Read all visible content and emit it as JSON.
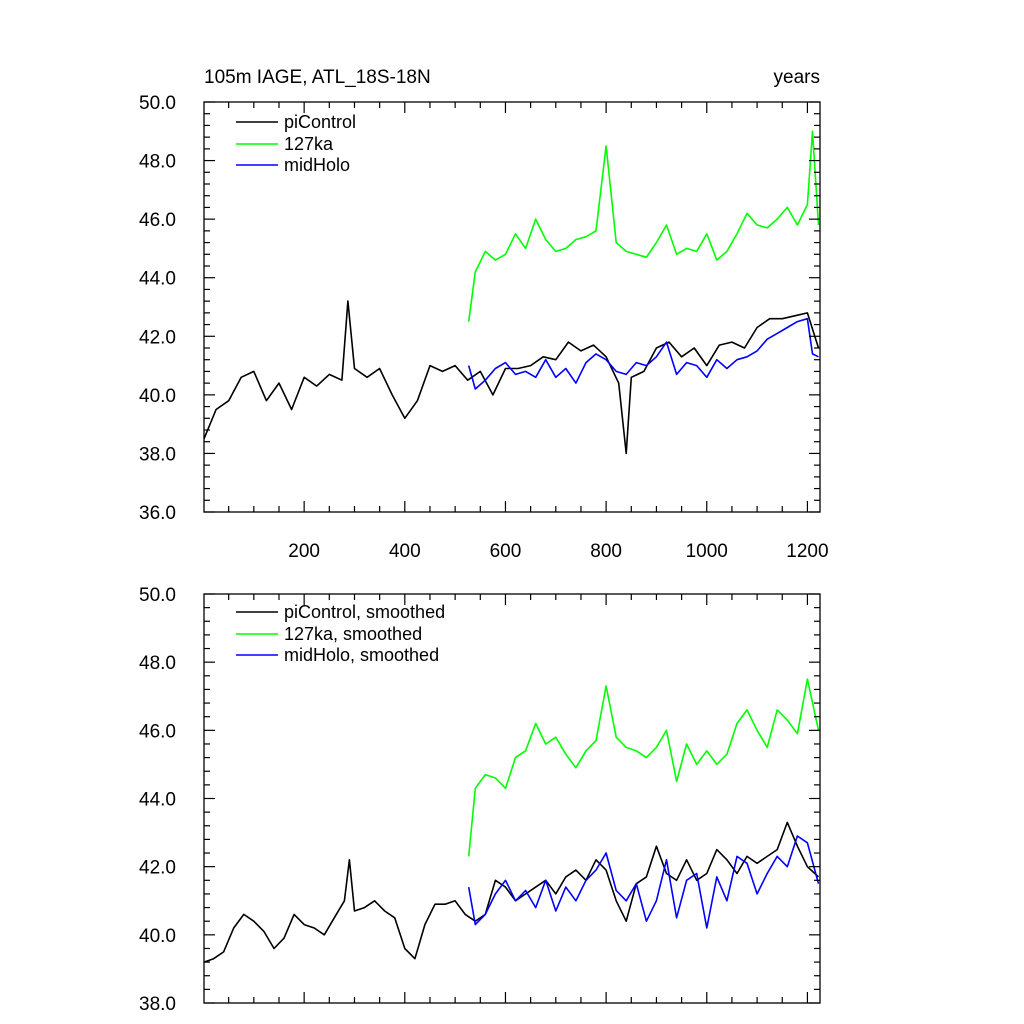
{
  "chart_data": [
    {
      "type": "line",
      "title_left": "105m IAGE, ATL_18S-18N",
      "title_right": "years",
      "xlabel": "",
      "ylabel": "",
      "xlim": [
        1,
        1225
      ],
      "ylim": [
        36.0,
        50.0
      ],
      "x_ticks": [
        200,
        400,
        600,
        800,
        1000,
        1200
      ],
      "x_tick_labels": [
        "200",
        "400",
        "600",
        "800",
        "1000",
        "1200"
      ],
      "y_ticks": [
        36.0,
        38.0,
        40.0,
        42.0,
        44.0,
        46.0,
        48.0,
        50.0
      ],
      "y_tick_labels": [
        "36.0",
        "38.0",
        "40.0",
        "42.0",
        "44.0",
        "46.0",
        "48.0",
        "50.0"
      ],
      "legend_position": "top-left",
      "series": [
        {
          "name": "piControl",
          "color": "#000000",
          "x": [
            1,
            25,
            50,
            75,
            100,
            125,
            150,
            175,
            200,
            225,
            250,
            275,
            287,
            300,
            325,
            350,
            375,
            400,
            425,
            450,
            475,
            500,
            525,
            550,
            575,
            600,
            625,
            650,
            675,
            700,
            725,
            750,
            775,
            800,
            825,
            840,
            850,
            875,
            900,
            925,
            950,
            975,
            1000,
            1025,
            1050,
            1075,
            1100,
            1125,
            1150,
            1175,
            1200,
            1222
          ],
          "values": [
            38.5,
            39.5,
            39.8,
            40.6,
            40.8,
            39.8,
            40.4,
            39.5,
            40.6,
            40.3,
            40.7,
            40.5,
            43.2,
            40.9,
            40.6,
            40.9,
            40.0,
            39.2,
            39.8,
            41.0,
            40.8,
            41.0,
            40.5,
            40.8,
            40.0,
            40.9,
            40.9,
            41.0,
            41.3,
            41.2,
            41.8,
            41.5,
            41.7,
            41.3,
            40.4,
            38.0,
            40.6,
            40.8,
            41.6,
            41.8,
            41.3,
            41.6,
            41.0,
            41.7,
            41.8,
            41.6,
            42.3,
            42.6,
            42.6,
            42.7,
            42.8,
            41.6
          ]
        },
        {
          "name": "127ka",
          "color": "#00ff00",
          "x": [
            527,
            540,
            560,
            580,
            600,
            620,
            640,
            660,
            680,
            700,
            720,
            740,
            760,
            780,
            800,
            820,
            840,
            860,
            880,
            900,
            920,
            940,
            960,
            980,
            1000,
            1020,
            1040,
            1060,
            1080,
            1100,
            1120,
            1140,
            1160,
            1180,
            1200,
            1210,
            1222
          ],
          "values": [
            42.5,
            44.2,
            44.9,
            44.6,
            44.8,
            45.5,
            45.0,
            46.0,
            45.3,
            44.9,
            45.0,
            45.3,
            45.4,
            45.6,
            48.5,
            45.2,
            44.9,
            44.8,
            44.7,
            45.2,
            45.8,
            44.8,
            45.0,
            44.9,
            45.5,
            44.6,
            44.9,
            45.5,
            46.2,
            45.8,
            45.7,
            46.0,
            46.4,
            45.8,
            46.5,
            49.0,
            45.8
          ]
        },
        {
          "name": "midHolo",
          "color": "#0000ff",
          "x": [
            527,
            540,
            560,
            580,
            600,
            620,
            640,
            660,
            680,
            700,
            720,
            740,
            760,
            780,
            800,
            820,
            840,
            860,
            880,
            900,
            920,
            940,
            960,
            980,
            1000,
            1020,
            1040,
            1060,
            1080,
            1100,
            1120,
            1140,
            1160,
            1180,
            1200,
            1210,
            1222
          ],
          "values": [
            41.0,
            40.2,
            40.5,
            40.9,
            41.1,
            40.7,
            40.8,
            40.6,
            41.2,
            40.6,
            40.9,
            40.4,
            41.1,
            41.4,
            41.2,
            40.8,
            40.7,
            41.1,
            41.0,
            41.3,
            41.8,
            40.7,
            41.1,
            41.0,
            40.6,
            41.2,
            40.9,
            41.2,
            41.3,
            41.5,
            41.9,
            42.1,
            42.3,
            42.5,
            42.6,
            41.4,
            41.3
          ]
        }
      ]
    },
    {
      "type": "line",
      "xlabel": "",
      "ylabel": "",
      "xlim": [
        1,
        1225
      ],
      "ylim": [
        38.0,
        50.0
      ],
      "x_ticks": [
        200,
        400,
        600,
        800,
        1000,
        1200
      ],
      "y_ticks": [
        38.0,
        40.0,
        42.0,
        44.0,
        46.0,
        48.0,
        50.0
      ],
      "y_tick_labels": [
        "38.0",
        "40.0",
        "42.0",
        "44.0",
        "46.0",
        "48.0",
        "50.0"
      ],
      "legend_position": "top-left",
      "series": [
        {
          "name": "piControl, smoothed",
          "color": "#000000",
          "x": [
            1,
            20,
            40,
            60,
            80,
            100,
            120,
            140,
            160,
            180,
            200,
            220,
            240,
            260,
            280,
            290,
            300,
            320,
            340,
            360,
            380,
            400,
            420,
            440,
            460,
            480,
            500,
            520,
            540,
            560,
            580,
            600,
            620,
            640,
            660,
            680,
            700,
            720,
            740,
            760,
            780,
            800,
            820,
            840,
            860,
            880,
            900,
            920,
            940,
            960,
            980,
            1000,
            1020,
            1040,
            1060,
            1080,
            1100,
            1120,
            1140,
            1160,
            1180,
            1200,
            1222
          ],
          "values": [
            39.2,
            39.3,
            39.5,
            40.2,
            40.6,
            40.4,
            40.1,
            39.6,
            39.9,
            40.6,
            40.3,
            40.2,
            40.0,
            40.5,
            41.0,
            42.2,
            40.7,
            40.8,
            41.0,
            40.7,
            40.5,
            39.6,
            39.3,
            40.3,
            40.9,
            40.9,
            41.0,
            40.6,
            40.4,
            40.6,
            41.6,
            41.4,
            41.0,
            41.2,
            41.4,
            41.6,
            41.2,
            41.7,
            41.9,
            41.6,
            42.2,
            41.9,
            41.0,
            40.4,
            41.5,
            41.7,
            42.6,
            41.8,
            41.6,
            42.2,
            41.6,
            41.8,
            42.5,
            42.2,
            41.8,
            42.3,
            42.1,
            42.3,
            42.5,
            43.3,
            42.6,
            42.0,
            41.7
          ]
        },
        {
          "name": "127ka, smoothed",
          "color": "#00ff00",
          "x": [
            527,
            540,
            560,
            580,
            600,
            620,
            640,
            660,
            680,
            700,
            720,
            740,
            760,
            780,
            800,
            820,
            840,
            860,
            880,
            900,
            920,
            940,
            960,
            980,
            1000,
            1020,
            1040,
            1060,
            1080,
            1100,
            1120,
            1140,
            1160,
            1180,
            1200,
            1222
          ],
          "values": [
            42.3,
            44.3,
            44.7,
            44.6,
            44.3,
            45.2,
            45.4,
            46.2,
            45.6,
            45.8,
            45.3,
            44.9,
            45.4,
            45.7,
            47.3,
            45.8,
            45.5,
            45.4,
            45.2,
            45.5,
            46.0,
            44.5,
            45.6,
            45.0,
            45.4,
            45.0,
            45.3,
            46.2,
            46.6,
            46.0,
            45.5,
            46.6,
            46.3,
            45.9,
            47.5,
            46.0
          ]
        },
        {
          "name": "midHolo, smoothed",
          "color": "#0000ff",
          "x": [
            527,
            540,
            560,
            580,
            600,
            620,
            640,
            660,
            680,
            700,
            720,
            740,
            760,
            780,
            800,
            820,
            840,
            860,
            880,
            900,
            920,
            940,
            960,
            980,
            1000,
            1020,
            1040,
            1060,
            1080,
            1100,
            1120,
            1140,
            1160,
            1180,
            1200,
            1222
          ],
          "values": [
            41.4,
            40.3,
            40.6,
            41.2,
            41.6,
            41.0,
            41.3,
            40.8,
            41.6,
            40.7,
            41.4,
            41.0,
            41.6,
            41.9,
            42.4,
            41.3,
            41.0,
            41.5,
            40.4,
            41.0,
            42.2,
            40.5,
            41.6,
            41.8,
            40.2,
            41.7,
            41.0,
            42.3,
            42.1,
            41.2,
            41.8,
            42.3,
            42.0,
            42.9,
            42.7,
            41.5
          ]
        }
      ]
    }
  ]
}
